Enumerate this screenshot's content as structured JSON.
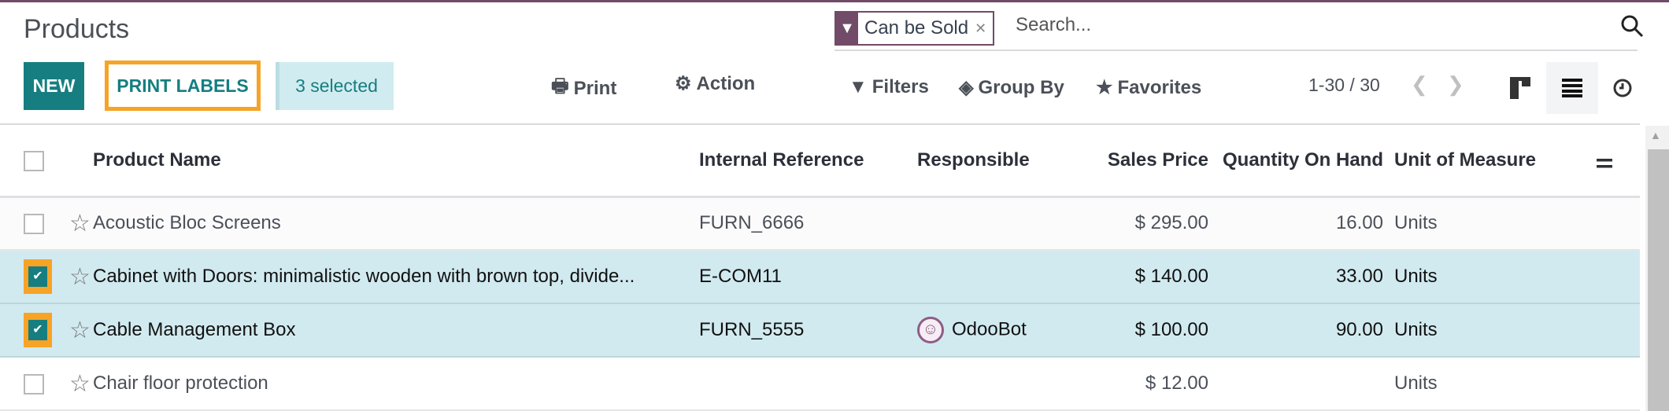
{
  "header": {
    "title": "Products"
  },
  "toolbar": {
    "new_label": "NEW",
    "print_labels_label": "PRINT LABELS",
    "selected_label": "3 selected",
    "print_label": "Print",
    "action_label": "Action"
  },
  "search": {
    "facet_label": "Can be Sold",
    "placeholder": "Search..."
  },
  "filters": {
    "filters_label": "Filters",
    "groupby_label": "Group By",
    "favorites_label": "Favorites"
  },
  "pager": {
    "value": "1-30 / 30"
  },
  "accent": "#167e80",
  "highlight": "#f7a325",
  "brand": "#714b67",
  "table": {
    "columns": [
      "Product Name",
      "Internal Reference",
      "Responsible",
      "Sales Price",
      "Quantity On Hand",
      "Unit of Measure"
    ],
    "rows": [
      {
        "selected": false,
        "name": "Acoustic Bloc Screens",
        "ref": "FURN_6666",
        "responsible": "",
        "price": "$ 295.00",
        "qty": "16.00",
        "uom": "Units"
      },
      {
        "selected": true,
        "name": "Cabinet with Doors: minimalistic wooden with brown top, divide...",
        "ref": "E-COM11",
        "responsible": "",
        "price": "$ 140.00",
        "qty": "33.00",
        "uom": "Units"
      },
      {
        "selected": true,
        "name": "Cable Management Box",
        "ref": "FURN_5555",
        "responsible": "OdooBot",
        "price": "$ 100.00",
        "qty": "90.00",
        "uom": "Units"
      },
      {
        "selected": false,
        "name": "Chair floor protection",
        "ref": "",
        "responsible": "",
        "price": "$ 12.00",
        "qty": "",
        "uom": "Units"
      }
    ]
  }
}
